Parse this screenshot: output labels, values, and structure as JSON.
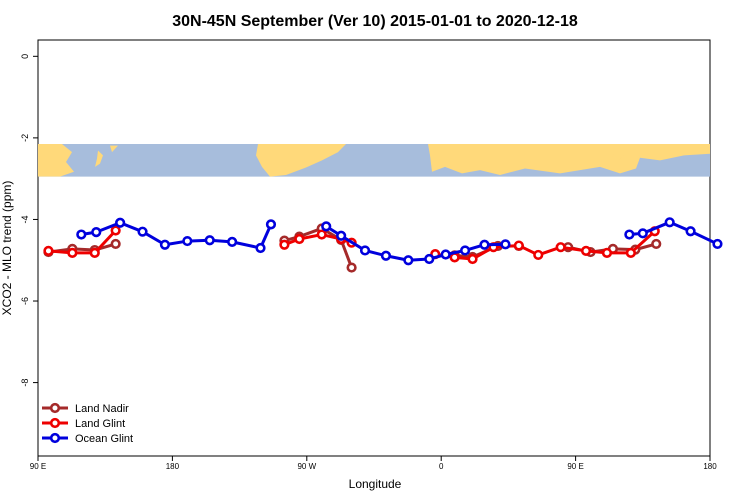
{
  "chart_data": {
    "type": "line",
    "title": "30N-45N September (Ver 10)   2015-01-01 to 2020-12-18",
    "xlabel": "Longitude",
    "ylabel": "XCO2 - MLO trend (ppm)",
    "xlim": [
      90,
      540
    ],
    "ylim": [
      -9.8,
      0.4
    ],
    "x_ticks": [
      {
        "value": 90,
        "label": "90 E"
      },
      {
        "value": 180,
        "label": "180"
      },
      {
        "value": 270,
        "label": "90 W"
      },
      {
        "value": 360,
        "label": "0"
      },
      {
        "value": 450,
        "label": "90 E"
      },
      {
        "value": 540,
        "label": "180"
      }
    ],
    "y_ticks": [
      {
        "value": 0,
        "label": "0"
      },
      {
        "value": -2,
        "label": "-2"
      },
      {
        "value": -4,
        "label": "-4"
      },
      {
        "value": -6,
        "label": "-6"
      },
      {
        "value": -8,
        "label": "-8"
      }
    ],
    "legend_position": "bottom-left",
    "map_band": {
      "y_top": -2.15,
      "y_bottom": -2.95,
      "ocean_color": "#a7bddc",
      "land_color": "#ffd97a"
    },
    "series": [
      {
        "name": "Land Nadir",
        "color": "#a52a2a",
        "segments": [
          [
            [
              97,
              -4.8
            ],
            [
              113,
              -4.72
            ],
            [
              128,
              -4.75
            ],
            [
              142,
              -4.6
            ]
          ],
          [
            [
              255,
              -4.52
            ],
            [
              265,
              -4.42
            ],
            [
              280,
              -4.22
            ],
            [
              293,
              -4.5
            ],
            [
              300,
              -5.18
            ]
          ],
          [
            [
              369,
              -4.88
            ],
            [
              381,
              -4.92
            ],
            [
              398,
              -4.65
            ],
            [
              412,
              -4.65
            ]
          ],
          [
            [
              445,
              -4.68
            ],
            [
              460,
              -4.8
            ],
            [
              475,
              -4.72
            ],
            [
              490,
              -4.74
            ],
            [
              504,
              -4.6
            ]
          ]
        ]
      },
      {
        "name": "Land Glint",
        "color": "#ee0000",
        "segments": [
          [
            [
              97,
              -4.77
            ],
            [
              113,
              -4.82
            ],
            [
              128,
              -4.82
            ],
            [
              142,
              -4.27
            ]
          ],
          [
            [
              255,
              -4.62
            ],
            [
              265,
              -4.48
            ],
            [
              280,
              -4.37
            ],
            [
              293,
              -4.48
            ],
            [
              300,
              -4.57
            ]
          ],
          [
            [
              356,
              -4.85
            ],
            [
              369,
              -4.93
            ],
            [
              381,
              -4.97
            ],
            [
              395,
              -4.68
            ],
            [
              412,
              -4.64
            ],
            [
              425,
              -4.87
            ],
            [
              440,
              -4.68
            ],
            [
              457,
              -4.77
            ],
            [
              471,
              -4.82
            ],
            [
              487,
              -4.82
            ],
            [
              503,
              -4.29
            ]
          ]
        ]
      },
      {
        "name": "Ocean Glint",
        "color": "#0000dd",
        "segments": [
          [
            [
              119,
              -4.37
            ],
            [
              129,
              -4.31
            ],
            [
              145,
              -4.08
            ],
            [
              160,
              -4.3
            ],
            [
              175,
              -4.62
            ],
            [
              190,
              -4.53
            ],
            [
              205,
              -4.51
            ],
            [
              220,
              -4.55
            ],
            [
              239,
              -4.7
            ],
            [
              246,
              -4.12
            ]
          ],
          [
            [
              283,
              -4.17
            ],
            [
              293,
              -4.4
            ],
            [
              309,
              -4.76
            ],
            [
              323,
              -4.89
            ],
            [
              338,
              -5.0
            ],
            [
              352,
              -4.97
            ],
            [
              363,
              -4.86
            ],
            [
              376,
              -4.76
            ],
            [
              389,
              -4.62
            ],
            [
              403,
              -4.61
            ]
          ],
          [
            [
              486,
              -4.37
            ],
            [
              495,
              -4.34
            ],
            [
              513,
              -4.07
            ],
            [
              527,
              -4.29
            ],
            [
              545,
              -4.6
            ]
          ]
        ]
      }
    ]
  }
}
